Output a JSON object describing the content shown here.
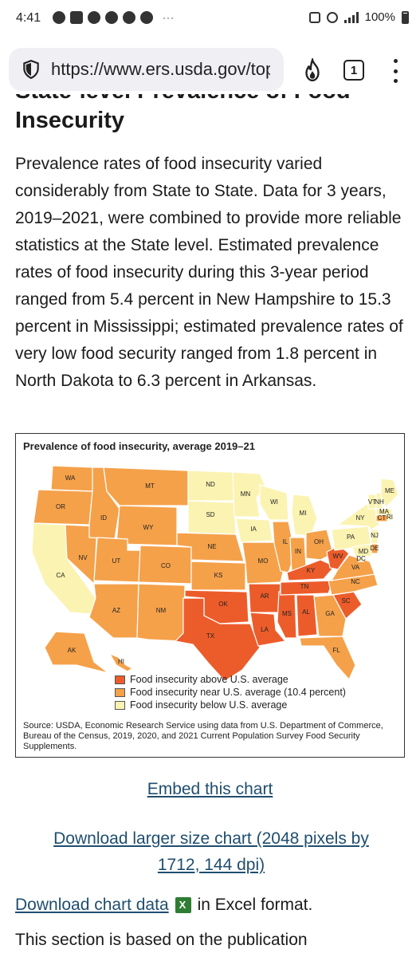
{
  "status_bar": {
    "time": "4:41",
    "dots": "···",
    "battery": "100%"
  },
  "browser": {
    "url": "https://www.ers.usda.gov/topics/food-nutrition-assistance",
    "tab_count": "1",
    "icons": [
      "shield-icon",
      "fire-icon",
      "tabs-icon",
      "menu-icon"
    ]
  },
  "article": {
    "heading_line1": "State-level Prevalence of Food",
    "heading_line2": "Insecurity",
    "paragraph": "Prevalence rates of food insecurity varied considerably from State to State. Data for 3 years, 2019–2021, were combined to provide more reliable statistics at the State level. Estimated prevalence rates of food insecurity during this 3-year period ranged from 5.4 percent in New Hampshire to 15.3 percent in Mississippi; estimated prevalence rates of very low food security ranged from 1.8 percent in North Dakota to 6.3 percent in Arkansas."
  },
  "figure": {
    "title": "Prevalence of food insecurity, average 2019–21",
    "colors": {
      "above": "#ec5c2b",
      "near": "#f5a14a",
      "below": "#fbf3b1",
      "border": "#ffffff"
    },
    "legend": [
      {
        "label": "Food insecurity above U.S. average",
        "color": "#ec5c2b"
      },
      {
        "label": "Food insecurity near U.S. average (10.4 percent)",
        "color": "#f5a14a"
      },
      {
        "label": "Food insecurity below U.S. average",
        "color": "#fbf3b1"
      }
    ],
    "state_labels": [
      "WA",
      "OR",
      "CA",
      "NV",
      "ID",
      "MT",
      "WY",
      "UT",
      "AZ",
      "CO",
      "NM",
      "ND",
      "SD",
      "NE",
      "KS",
      "OK",
      "TX",
      "MN",
      "IA",
      "MO",
      "AR",
      "LA",
      "WI",
      "IL",
      "MS",
      "MI",
      "IN",
      "KY",
      "TN",
      "AL",
      "OH",
      "WV",
      "GA",
      "FL",
      "SC",
      "NC",
      "VA",
      "PA",
      "NY",
      "VT",
      "NH",
      "ME",
      "MA",
      "RI",
      "CT",
      "NJ",
      "DE",
      "MD",
      "DC",
      "AK",
      "HI"
    ],
    "source": "Source: USDA, Economic Research Service using data from U.S. Department of Commerce, Bureau of the Census, 2019, 2020, and 2021 Current Population Survey Food Security Supplements."
  },
  "links": {
    "embed": "Embed this chart",
    "download_large": "Download larger size chart (2048 pixels by 1712, 144 dpi)",
    "download_data": "Download chart data",
    "download_data_suffix": "in Excel format.",
    "cut_text": "This section is based on the publication"
  }
}
